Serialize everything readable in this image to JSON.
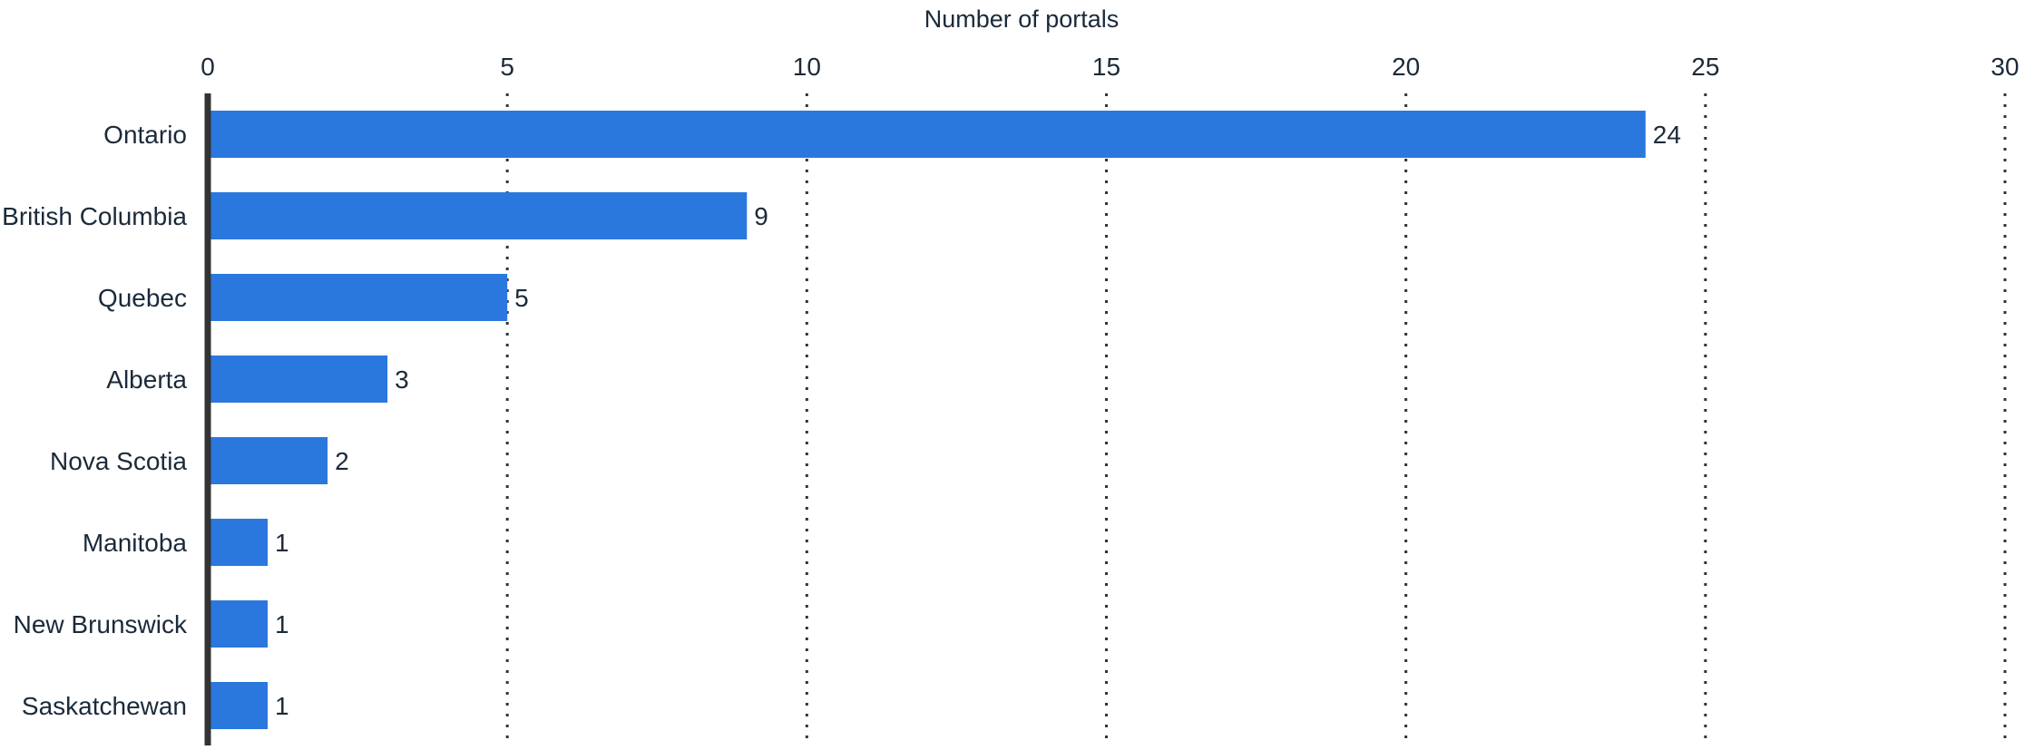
{
  "chart_data": {
    "type": "bar",
    "orientation": "horizontal",
    "title": "",
    "xlabel": "Number of portals",
    "ylabel": "",
    "xlim": [
      0,
      30
    ],
    "xticks": [
      0,
      5,
      10,
      15,
      20,
      25,
      30
    ],
    "x_axis_position": "top",
    "grid": "vertical-dotted",
    "categories": [
      "Ontario",
      "British Columbia",
      "Quebec",
      "Alberta",
      "Nova Scotia",
      "Manitoba",
      "New Brunswick",
      "Saskatchewan"
    ],
    "values": [
      24,
      9,
      5,
      3,
      2,
      1,
      1,
      1
    ],
    "data_labels": [
      "24",
      "9",
      "5",
      "3",
      "2",
      "1",
      "1",
      "1"
    ],
    "bar_color": "#2a78de"
  }
}
